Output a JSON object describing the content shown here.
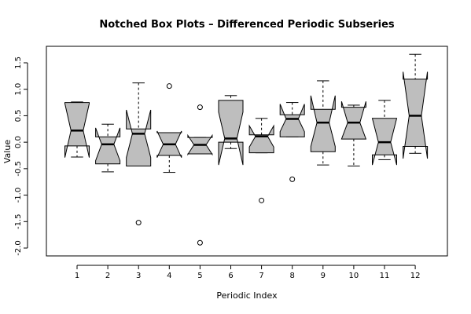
{
  "chart_data": {
    "type": "boxplot",
    "notched": true,
    "title": "Notched Box Plots – Differenced Periodic Subseries",
    "xlabel": "Periodic Index",
    "ylabel": "Value",
    "ylim": [
      -2.0,
      1.8
    ],
    "y_ticks": [
      "-2.0",
      "-1.5",
      "-1.0",
      "-0.5",
      "0.0",
      "0.5",
      "1.0",
      "1.5"
    ],
    "y_tick_values": [
      -2.0,
      -1.5,
      -1.0,
      -0.5,
      0.0,
      0.5,
      1.0,
      1.5
    ],
    "categories": [
      "1",
      "2",
      "3",
      "4",
      "5",
      "6",
      "7",
      "8",
      "9",
      "10",
      "11",
      "12"
    ],
    "box_fill": "#bebebe",
    "line_color": "#000000",
    "grid": false,
    "boxes": [
      {
        "category": "1",
        "whisker_low": -0.28,
        "q1": -0.07,
        "median": 0.22,
        "q3": 0.75,
        "whisker_high": 0.76,
        "notch_low": -0.29,
        "notch_high": 0.73,
        "outliers": []
      },
      {
        "category": "2",
        "whisker_low": -0.56,
        "q1": -0.41,
        "median": -0.04,
        "q3": 0.1,
        "whisker_high": 0.34,
        "notch_low": -0.35,
        "notch_high": 0.27,
        "outliers": []
      },
      {
        "category": "3",
        "whisker_low": -0.45,
        "q1": -0.45,
        "median": 0.16,
        "q3": 0.25,
        "whisker_high": 1.12,
        "notch_low": -0.29,
        "notch_high": 0.61,
        "outliers": [
          -1.52
        ]
      },
      {
        "category": "4",
        "whisker_low": -0.57,
        "q1": -0.25,
        "median": -0.04,
        "q3": 0.18,
        "whisker_high": 0.18,
        "notch_low": -0.29,
        "notch_high": 0.21,
        "outliers": [
          1.06
        ]
      },
      {
        "category": "5",
        "whisker_low": -0.22,
        "q1": -0.22,
        "median": -0.05,
        "q3": 0.09,
        "whisker_high": 0.09,
        "notch_low": -0.23,
        "notch_high": 0.13,
        "outliers": [
          0.66,
          -1.9
        ]
      },
      {
        "category": "6",
        "whisker_low": -0.12,
        "q1": 0.0,
        "median": 0.07,
        "q3": 0.79,
        "whisker_high": 0.88,
        "notch_low": -0.43,
        "notch_high": 0.57,
        "outliers": []
      },
      {
        "category": "7",
        "whisker_low": -0.2,
        "q1": -0.2,
        "median": 0.11,
        "q3": 0.14,
        "whisker_high": 0.45,
        "notch_low": -0.09,
        "notch_high": 0.31,
        "outliers": [
          -1.1
        ]
      },
      {
        "category": "8",
        "whisker_low": 0.1,
        "q1": 0.1,
        "median": 0.44,
        "q3": 0.52,
        "whisker_high": 0.75,
        "notch_low": 0.2,
        "notch_high": 0.72,
        "outliers": [
          -0.7
        ]
      },
      {
        "category": "9",
        "whisker_low": -0.43,
        "q1": -0.18,
        "median": 0.37,
        "q3": 0.62,
        "whisker_high": 1.16,
        "notch_low": -0.08,
        "notch_high": 0.88,
        "outliers": []
      },
      {
        "category": "10",
        "whisker_low": -0.45,
        "q1": 0.06,
        "median": 0.37,
        "q3": 0.66,
        "whisker_high": 0.7,
        "notch_low": 0.06,
        "notch_high": 0.77,
        "outliers": []
      },
      {
        "category": "11",
        "whisker_low": -0.33,
        "q1": -0.24,
        "median": 0.0,
        "q3": 0.45,
        "whisker_high": 0.79,
        "notch_low": -0.43,
        "notch_high": 0.45,
        "outliers": []
      },
      {
        "category": "12",
        "whisker_low": -0.21,
        "q1": -0.08,
        "median": 0.5,
        "q3": 1.19,
        "whisker_high": 1.66,
        "notch_low": -0.31,
        "notch_high": 1.33,
        "outliers": []
      }
    ]
  }
}
